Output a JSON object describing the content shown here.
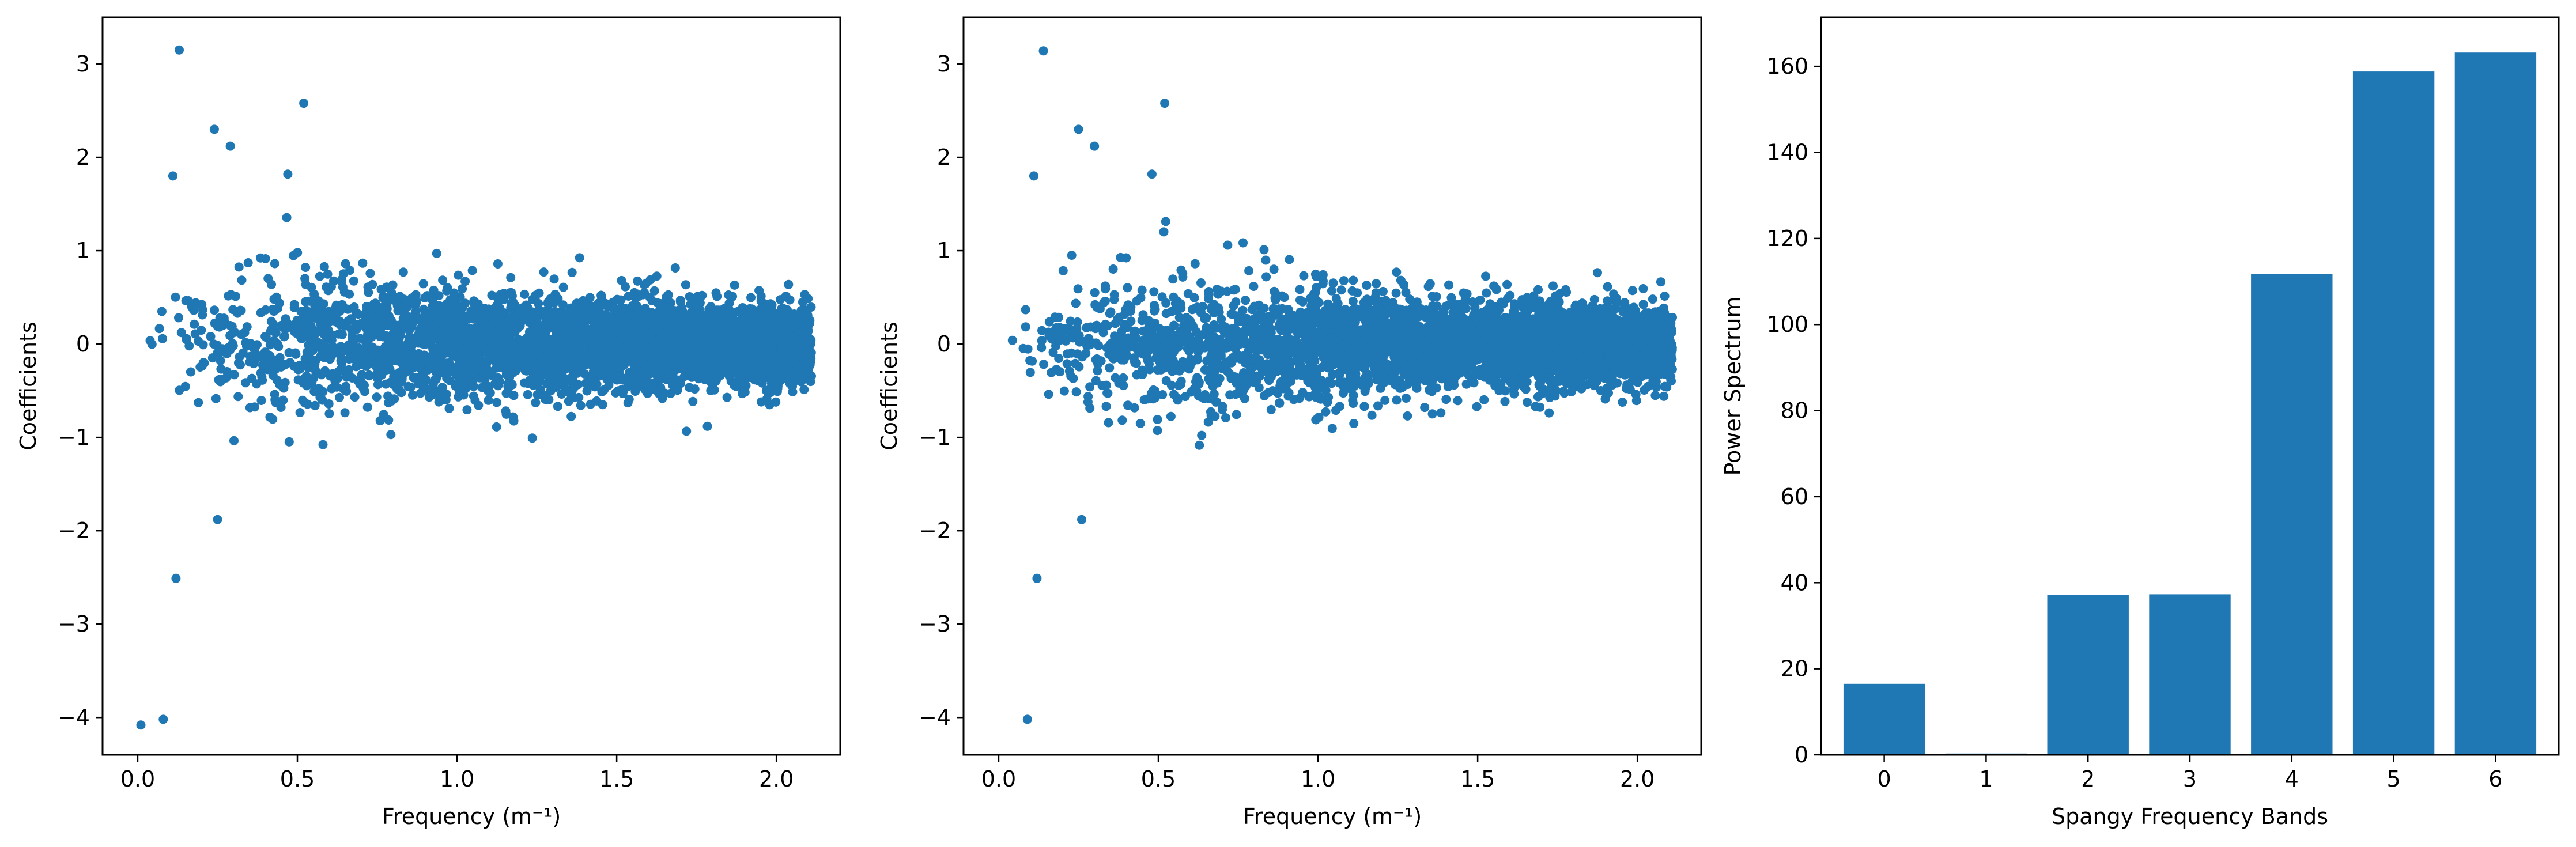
{
  "colors": {
    "marker": "#1f77b4",
    "bar": "#1f77b4",
    "axis": "#000000",
    "background": "#ffffff"
  },
  "chart_data": [
    {
      "type": "scatter",
      "xlabel": "Frequency (m⁻¹)",
      "ylabel": "Coefficients",
      "title": "",
      "xlim": [
        -0.11,
        2.2
      ],
      "ylim": [
        -4.4,
        3.5
      ],
      "xticks": [
        0.0,
        0.5,
        1.0,
        1.5,
        2.0
      ],
      "xtick_labels": [
        "0.0",
        "0.5",
        "1.0",
        "1.5",
        "2.0"
      ],
      "yticks": [
        -4,
        -3,
        -2,
        -1,
        0,
        1,
        2,
        3
      ],
      "ytick_labels": [
        "−4",
        "−3",
        "−2",
        "−1",
        "0",
        "1",
        "2",
        "3"
      ],
      "grid": false,
      "notable_points": [
        [
          0.13,
          3.15
        ],
        [
          0.52,
          2.58
        ],
        [
          0.24,
          2.3
        ],
        [
          0.29,
          2.12
        ],
        [
          0.11,
          1.8
        ],
        [
          0.47,
          1.82
        ],
        [
          0.12,
          -2.51
        ],
        [
          0.01,
          -4.08
        ],
        [
          0.08,
          -4.02
        ],
        [
          0.25,
          -1.88
        ]
      ],
      "cloud": {
        "point_count": 4000,
        "x_range": [
          0.0,
          2.11
        ],
        "spread_by_x": [
          [
            0.0,
            0.1
          ],
          [
            0.15,
            0.85
          ],
          [
            0.5,
            0.95
          ],
          [
            0.7,
            0.8
          ],
          [
            1.0,
            0.7
          ],
          [
            1.3,
            0.6
          ],
          [
            1.6,
            0.55
          ],
          [
            1.9,
            0.5
          ],
          [
            2.11,
            0.45
          ]
        ]
      }
    },
    {
      "type": "scatter",
      "xlabel": "Frequency (m⁻¹)",
      "ylabel": "Coefficients",
      "title": "",
      "xlim": [
        -0.11,
        2.2
      ],
      "ylim": [
        -4.4,
        3.5
      ],
      "xticks": [
        0.0,
        0.5,
        1.0,
        1.5,
        2.0
      ],
      "xtick_labels": [
        "0.0",
        "0.5",
        "1.0",
        "1.5",
        "2.0"
      ],
      "yticks": [
        -4,
        -3,
        -2,
        -1,
        0,
        1,
        2,
        3
      ],
      "ytick_labels": [
        "−4",
        "−3",
        "−2",
        "−1",
        "0",
        "1",
        "2",
        "3"
      ],
      "grid": false,
      "notable_points": [
        [
          0.14,
          3.14
        ],
        [
          0.52,
          2.58
        ],
        [
          0.25,
          2.3
        ],
        [
          0.3,
          2.12
        ],
        [
          0.11,
          1.8
        ],
        [
          0.48,
          1.82
        ],
        [
          0.12,
          -2.51
        ],
        [
          0.09,
          -4.02
        ],
        [
          0.26,
          -1.88
        ]
      ],
      "cloud": {
        "point_count": 4000,
        "x_range": [
          0.0,
          2.11
        ],
        "spread_by_x": [
          [
            0.0,
            0.1
          ],
          [
            0.15,
            0.85
          ],
          [
            0.5,
            0.95
          ],
          [
            0.7,
            0.8
          ],
          [
            1.0,
            0.7
          ],
          [
            1.3,
            0.6
          ],
          [
            1.6,
            0.55
          ],
          [
            1.9,
            0.5
          ],
          [
            2.11,
            0.45
          ]
        ]
      }
    },
    {
      "type": "bar",
      "xlabel": "Spangy Frequency Bands",
      "ylabel": "Power Spectrum",
      "title": "",
      "categories": [
        "0",
        "1",
        "2",
        "3",
        "4",
        "5",
        "6"
      ],
      "values": [
        16.5,
        0.3,
        37.2,
        37.3,
        111.8,
        158.8,
        163.2
      ],
      "ylim": [
        0,
        171.4
      ],
      "yticks": [
        0,
        20,
        40,
        60,
        80,
        100,
        120,
        140,
        160
      ],
      "ytick_labels": [
        "0",
        "20",
        "40",
        "60",
        "80",
        "100",
        "120",
        "140",
        "160"
      ],
      "grid": false
    }
  ]
}
